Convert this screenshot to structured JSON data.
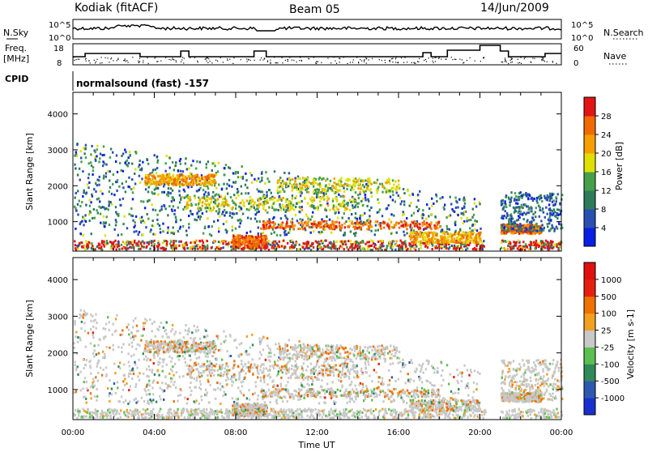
{
  "header": {
    "station": "Kodiak (fitACF)",
    "beam": "Beam 05",
    "date": "14/Jun/2009"
  },
  "status_panel": {
    "nsky_label": "N.Sky",
    "nsky_scale_top": "10^5",
    "nsky_scale_bottom": "10^0",
    "nsearch_label": "N.Search",
    "nsearch_scale_top": "10^5",
    "nsearch_scale_bottom": "10^0",
    "freq_label_line1": "Freq.",
    "freq_label_line2": "[MHz]",
    "freq_scale_top": "18",
    "freq_scale_bottom": "8",
    "nave_label": "Nave",
    "nave_scale_top": "60",
    "nave_scale_bottom": "0",
    "cpid_label": "CPID",
    "cpid_value": "normalsound (fast) -157"
  },
  "chart_data": [
    {
      "type": "heatmap",
      "title": "Power",
      "ylabel": "Slant Range [km]",
      "xlabel": "Time UT",
      "ylim": [
        180,
        4600
      ],
      "xlim": [
        "00:00",
        "24:00"
      ],
      "y_ticks": [
        "1000",
        "2000",
        "3000",
        "4000"
      ],
      "x_ticks": [
        "00:00",
        "04:00",
        "08:00",
        "12:00",
        "16:00",
        "20:00",
        "00:00"
      ],
      "colorbar_label": "Power [dB]",
      "colorbar_ticks": [
        "4",
        "8",
        "12",
        "16",
        "20",
        "24",
        "28"
      ],
      "colorbar_colors": [
        "#0a1ee6",
        "#2a4fb0",
        "#2e7c5c",
        "#46a04a",
        "#e0e000",
        "#f5a000",
        "#f06a00",
        "#e21414"
      ],
      "data_gap": [
        "20:15",
        "21:00"
      ]
    },
    {
      "type": "heatmap",
      "title": "Velocity",
      "ylabel": "Slant Range [km]",
      "xlabel": "Time UT",
      "ylim": [
        180,
        4600
      ],
      "xlim": [
        "00:00",
        "24:00"
      ],
      "y_ticks": [
        "1000",
        "2000",
        "3000",
        "4000"
      ],
      "x_ticks": [
        "00:00",
        "04:00",
        "08:00",
        "12:00",
        "16:00",
        "20:00",
        "00:00"
      ],
      "colorbar_label": "Velocity [m s-1]",
      "colorbar_ticks": [
        "1000",
        "500",
        "100",
        "25",
        "-25",
        "-100",
        "-500",
        "-1000"
      ],
      "colorbar_colors": [
        "#1a2fd0",
        "#2e58b0",
        "#2f8a5a",
        "#5cc050",
        "#c8c8c8",
        "#f2a020",
        "#f07000",
        "#e62010",
        "#e01010"
      ],
      "data_gap": [
        "20:15",
        "21:00"
      ]
    }
  ]
}
